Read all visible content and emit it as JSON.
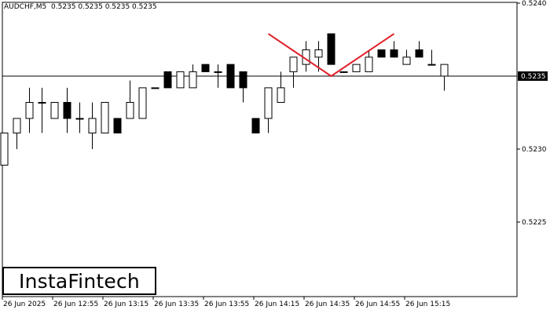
{
  "symbol_info": {
    "symbol": "AUDCHF,M5",
    "ohlc": "0.5235 0.5235 0.5235 0.5235"
  },
  "logo": {
    "text": "InstaFintech"
  },
  "current_price_label": "0.5235",
  "colors": {
    "background": "#ffffff",
    "candle_border": "#000000",
    "bull_fill": "#ffffff",
    "bear_fill": "#000000",
    "pattern_line": "#e0202a",
    "price_line": "#000000"
  },
  "chart_data": {
    "type": "candlestick",
    "title": "",
    "ylim": [
      0.522,
      0.524
    ],
    "y_tick_labels": [
      "0.5240",
      "0.5230",
      "0.5225"
    ],
    "x_tick_labels": [
      "26 Jun 2025",
      "26 Jun 12:55",
      "26 Jun 13:15",
      "26 Jun 13:35",
      "26 Jun 13:55",
      "26 Jun 14:15",
      "26 Jun 14:35",
      "26 Jun 14:55",
      "26 Jun 15:15"
    ],
    "current_price": 0.5235,
    "candles": [
      {
        "o": 0.52289,
        "h": 0.52311,
        "l": 0.52289,
        "c": 0.52311
      },
      {
        "o": 0.52311,
        "h": 0.52321,
        "l": 0.523,
        "c": 0.52321
      },
      {
        "o": 0.52321,
        "h": 0.52342,
        "l": 0.52311,
        "c": 0.52332
      },
      {
        "o": 0.52332,
        "h": 0.52342,
        "l": 0.52311,
        "c": 0.52332
      },
      {
        "o": 0.52321,
        "h": 0.52332,
        "l": 0.52321,
        "c": 0.52332
      },
      {
        "o": 0.52332,
        "h": 0.52342,
        "l": 0.52311,
        "c": 0.52321
      },
      {
        "o": 0.52321,
        "h": 0.52332,
        "l": 0.52311,
        "c": 0.52321
      },
      {
        "o": 0.52311,
        "h": 0.52332,
        "l": 0.523,
        "c": 0.52321
      },
      {
        "o": 0.52311,
        "h": 0.52332,
        "l": 0.52311,
        "c": 0.52332
      },
      {
        "o": 0.52321,
        "h": 0.52321,
        "l": 0.52311,
        "c": 0.52311
      },
      {
        "o": 0.52321,
        "h": 0.52347,
        "l": 0.52321,
        "c": 0.52332
      },
      {
        "o": 0.52321,
        "h": 0.52342,
        "l": 0.52321,
        "c": 0.52342
      },
      {
        "o": 0.52342,
        "h": 0.52342,
        "l": 0.52342,
        "c": 0.52342
      },
      {
        "o": 0.52353,
        "h": 0.52353,
        "l": 0.52342,
        "c": 0.52342
      },
      {
        "o": 0.52342,
        "h": 0.52353,
        "l": 0.52342,
        "c": 0.52353
      },
      {
        "o": 0.52342,
        "h": 0.52358,
        "l": 0.52342,
        "c": 0.52353
      },
      {
        "o": 0.52358,
        "h": 0.52358,
        "l": 0.52353,
        "c": 0.52353
      },
      {
        "o": 0.52353,
        "h": 0.52358,
        "l": 0.52342,
        "c": 0.52353
      },
      {
        "o": 0.52358,
        "h": 0.52358,
        "l": 0.52342,
        "c": 0.52342
      },
      {
        "o": 0.52353,
        "h": 0.52353,
        "l": 0.52332,
        "c": 0.52342
      },
      {
        "o": 0.52321,
        "h": 0.52321,
        "l": 0.52311,
        "c": 0.52311
      },
      {
        "o": 0.52321,
        "h": 0.52342,
        "l": 0.52311,
        "c": 0.52342
      },
      {
        "o": 0.52332,
        "h": 0.52353,
        "l": 0.52332,
        "c": 0.52342
      },
      {
        "o": 0.52353,
        "h": 0.52363,
        "l": 0.52342,
        "c": 0.52363
      },
      {
        "o": 0.52358,
        "h": 0.52374,
        "l": 0.52353,
        "c": 0.52368
      },
      {
        "o": 0.52363,
        "h": 0.52374,
        "l": 0.52353,
        "c": 0.52368
      },
      {
        "o": 0.52379,
        "h": 0.52379,
        "l": 0.52358,
        "c": 0.52358
      },
      {
        "o": 0.52353,
        "h": 0.52353,
        "l": 0.52353,
        "c": 0.52353
      },
      {
        "o": 0.52353,
        "h": 0.52358,
        "l": 0.52353,
        "c": 0.52358
      },
      {
        "o": 0.52353,
        "h": 0.52368,
        "l": 0.52353,
        "c": 0.52363
      },
      {
        "o": 0.52368,
        "h": 0.52368,
        "l": 0.52363,
        "c": 0.52363
      },
      {
        "o": 0.52368,
        "h": 0.52374,
        "l": 0.52363,
        "c": 0.52363
      },
      {
        "o": 0.52358,
        "h": 0.52368,
        "l": 0.52358,
        "c": 0.52363
      },
      {
        "o": 0.52368,
        "h": 0.52374,
        "l": 0.52363,
        "c": 0.52363
      },
      {
        "o": 0.52358,
        "h": 0.52368,
        "l": 0.52358,
        "c": 0.52358
      },
      {
        "o": 0.5235,
        "h": 0.52358,
        "l": 0.5234,
        "c": 0.52358
      }
    ],
    "pattern": {
      "name": "",
      "points": [
        {
          "candle": 21,
          "price": 0.52379
        },
        {
          "candle": 26,
          "price": 0.5235
        },
        {
          "candle": 31,
          "price": 0.52379
        }
      ]
    }
  }
}
